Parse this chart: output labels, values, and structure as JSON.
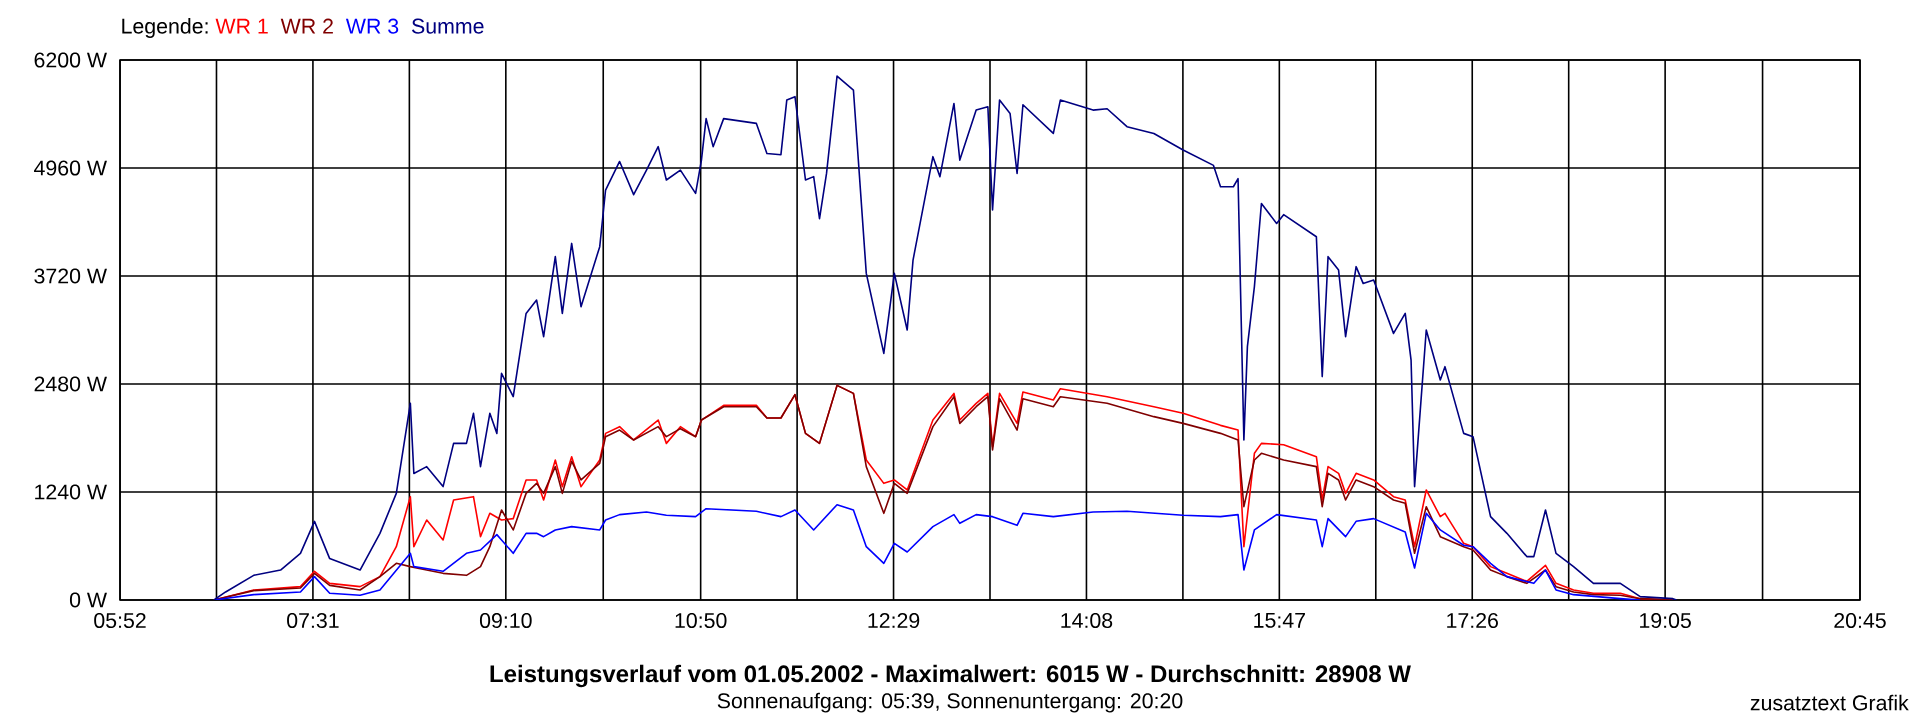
{
  "chart_data": {
    "type": "line",
    "title": "Leistungsverlauf vom 01.05.2002 - Maximalwert: 6015 W - Durchschnitt: 28908 W",
    "subtitle": "Sonnenaufgang: 05:39, Sonnenuntergang: 20:20",
    "annotations": [
      "zusatztext Grafik"
    ],
    "legend_title": "Legende:",
    "legend": "top left",
    "grid": true,
    "xlim": [
      5.8667,
      20.75
    ],
    "ylim": [
      0,
      6200
    ],
    "xticks": [
      {
        "value": 5.8667,
        "label": "05:52"
      },
      {
        "value": 6.6917,
        "label": null
      },
      {
        "value": 7.5167,
        "label": "07:31"
      },
      {
        "value": 8.3417,
        "label": null
      },
      {
        "value": 9.1667,
        "label": "09:10"
      },
      {
        "value": 10.0,
        "label": null
      },
      {
        "value": 10.8333,
        "label": "10:50"
      },
      {
        "value": 11.6583,
        "label": null
      },
      {
        "value": 12.4833,
        "label": "12:29"
      },
      {
        "value": 13.3083,
        "label": null
      },
      {
        "value": 14.1333,
        "label": "14:08"
      },
      {
        "value": 14.9583,
        "label": null
      },
      {
        "value": 15.7833,
        "label": "15:47"
      },
      {
        "value": 16.6083,
        "label": null
      },
      {
        "value": 17.4333,
        "label": "17:26"
      },
      {
        "value": 18.2583,
        "label": null
      },
      {
        "value": 19.0833,
        "label": "19:05"
      },
      {
        "value": 19.9167,
        "label": null
      },
      {
        "value": 20.75,
        "label": "20:45"
      }
    ],
    "yticks": [
      {
        "value": 0,
        "label": "0 W"
      },
      {
        "value": 1240,
        "label": "1240 W"
      },
      {
        "value": 2480,
        "label": "2480 W"
      },
      {
        "value": 3720,
        "label": "3720 W"
      },
      {
        "value": 4960,
        "label": "4960 W"
      },
      {
        "value": 6200,
        "label": "6200 W"
      }
    ],
    "series": [
      {
        "name": "WR 1",
        "color": "#ff0000",
        "x": [
          6.67,
          7.01,
          7.41,
          7.53,
          7.66,
          7.92,
          8.09,
          8.23,
          8.35,
          8.38,
          8.49,
          8.63,
          8.72,
          8.89,
          8.95,
          9.03,
          9.13,
          9.23,
          9.34,
          9.43,
          9.49,
          9.59,
          9.65,
          9.73,
          9.81,
          9.97,
          10.02,
          10.14,
          10.26,
          10.47,
          10.54,
          10.66,
          10.79,
          10.84,
          11.03,
          11.31,
          11.4,
          11.52,
          11.64,
          11.73,
          11.85,
          12.0,
          12.14,
          12.25,
          12.4,
          12.49,
          12.6,
          12.82,
          13.0,
          13.05,
          13.19,
          13.29,
          13.33,
          13.39,
          13.54,
          13.59,
          13.85,
          13.91,
          14.31,
          14.71,
          14.96,
          15.28,
          15.43,
          15.48,
          15.57,
          15.63,
          15.82,
          16.1,
          16.15,
          16.2,
          16.29,
          16.35,
          16.44,
          16.59,
          16.76,
          16.86,
          16.94,
          17.04,
          17.16,
          17.2,
          17.36,
          17.44,
          17.59,
          17.73,
          17.9,
          18.06,
          18.15,
          18.3,
          18.47,
          18.7,
          18.87,
          19.15
        ],
        "values": [
          0,
          115,
          153,
          329,
          191,
          153,
          268,
          612,
          1186,
          612,
          918,
          689,
          1148,
          1186,
          727,
          995,
          918,
          934,
          1378,
          1378,
          1148,
          1607,
          1301,
          1645,
          1301,
          1607,
          1913,
          1990,
          1837,
          2066,
          1798,
          1990,
          1875,
          2066,
          2235,
          2235,
          2089,
          2089,
          2357,
          1913,
          1798,
          2464,
          2372,
          1607,
          1339,
          1378,
          1263,
          2066,
          2372,
          2066,
          2258,
          2372,
          1760,
          2372,
          2028,
          2388,
          2296,
          2426,
          2334,
          2219,
          2143,
          2005,
          1951,
          612,
          1684,
          1798,
          1783,
          1645,
          1148,
          1531,
          1454,
          1224,
          1454,
          1378,
          1186,
          1148,
          612,
          1263,
          957,
          995,
          650,
          612,
          383,
          306,
          214,
          398,
          191,
          115,
          77,
          77,
          15,
          0
        ]
      },
      {
        "name": "WR 2",
        "color": "#800000",
        "x": [
          6.67,
          7.01,
          7.41,
          7.53,
          7.66,
          7.92,
          8.09,
          8.23,
          8.35,
          8.49,
          8.63,
          8.83,
          8.95,
          9.03,
          9.13,
          9.23,
          9.34,
          9.43,
          9.49,
          9.59,
          9.65,
          9.73,
          9.81,
          9.97,
          10.02,
          10.14,
          10.26,
          10.47,
          10.54,
          10.66,
          10.79,
          10.84,
          11.03,
          11.31,
          11.4,
          11.52,
          11.64,
          11.73,
          11.85,
          12.0,
          12.14,
          12.25,
          12.4,
          12.49,
          12.6,
          12.82,
          13.0,
          13.05,
          13.19,
          13.29,
          13.33,
          13.39,
          13.54,
          13.59,
          13.85,
          13.91,
          14.31,
          14.71,
          14.96,
          15.28,
          15.43,
          15.48,
          15.57,
          15.63,
          15.82,
          16.1,
          16.15,
          16.2,
          16.29,
          16.35,
          16.44,
          16.59,
          16.76,
          16.86,
          16.94,
          17.04,
          17.16,
          17.36,
          17.44,
          17.59,
          17.73,
          17.9,
          18.06,
          18.15,
          18.3,
          18.47,
          18.7,
          18.87,
          19.15
        ],
        "values": [
          0,
          107,
          138,
          306,
          168,
          115,
          268,
          421,
          383,
          344,
          306,
          283,
          383,
          612,
          1033,
          804,
          1224,
          1339,
          1224,
          1531,
          1224,
          1592,
          1378,
          1569,
          1875,
          1951,
          1837,
          1990,
          1875,
          1967,
          1875,
          2066,
          2219,
          2219,
          2089,
          2089,
          2357,
          1913,
          1798,
          2464,
          2372,
          1531,
          995,
          1339,
          1224,
          1990,
          2334,
          2028,
          2219,
          2334,
          1722,
          2311,
          1951,
          2311,
          2219,
          2334,
          2258,
          2105,
          2028,
          1913,
          1837,
          1071,
          1607,
          1684,
          1607,
          1531,
          1071,
          1454,
          1378,
          1148,
          1378,
          1301,
          1148,
          1110,
          536,
          1071,
          727,
          612,
          574,
          344,
          268,
          191,
          344,
          153,
          92,
          61,
          54,
          15,
          0
        ]
      },
      {
        "name": "WR 3",
        "color": "#0000ff",
        "x": [
          6.67,
          7.01,
          7.41,
          7.53,
          7.66,
          7.92,
          8.09,
          8.35,
          8.38,
          8.63,
          8.83,
          8.95,
          9.09,
          9.13,
          9.23,
          9.34,
          9.43,
          9.49,
          9.59,
          9.73,
          9.97,
          10.02,
          10.14,
          10.37,
          10.54,
          10.79,
          10.88,
          11.31,
          11.52,
          11.64,
          11.8,
          12.0,
          12.14,
          12.25,
          12.4,
          12.49,
          12.6,
          12.82,
          13.0,
          13.05,
          13.19,
          13.33,
          13.54,
          13.59,
          13.85,
          14.19,
          14.48,
          14.96,
          15.28,
          15.43,
          15.48,
          15.57,
          15.76,
          16.1,
          16.15,
          16.2,
          16.35,
          16.44,
          16.59,
          16.86,
          16.94,
          17.04,
          17.16,
          17.36,
          17.44,
          17.59,
          17.73,
          17.96,
          18.06,
          18.15,
          18.3,
          18.7,
          18.87
        ],
        "values": [
          0,
          61,
          92,
          268,
          77,
          54,
          115,
          536,
          383,
          329,
          536,
          574,
          750,
          689,
          536,
          765,
          765,
          727,
          804,
          842,
          804,
          918,
          980,
          1010,
          972,
          957,
          1048,
          1018,
          957,
          1033,
          804,
          1094,
          1033,
          612,
          421,
          650,
          551,
          842,
          980,
          880,
          980,
          957,
          857,
          995,
          957,
          1010,
          1018,
          972,
          957,
          980,
          344,
          804,
          980,
          918,
          612,
          934,
          727,
          903,
          934,
          781,
          367,
          995,
          804,
          628,
          612,
          421,
          268,
          191,
          344,
          115,
          61,
          15,
          0
        ]
      },
      {
        "name": "Summe",
        "color": "#000080",
        "x": [
          6.67,
          6.77,
          7.01,
          7.24,
          7.41,
          7.53,
          7.66,
          7.92,
          8.09,
          8.23,
          8.35,
          8.38,
          8.49,
          8.63,
          8.72,
          8.83,
          8.89,
          8.95,
          9.03,
          9.09,
          9.13,
          9.23,
          9.34,
          9.43,
          9.49,
          9.59,
          9.65,
          9.73,
          9.81,
          9.97,
          10.02,
          10.14,
          10.26,
          10.37,
          10.47,
          10.54,
          10.66,
          10.79,
          10.84,
          10.88,
          10.94,
          11.03,
          11.31,
          11.4,
          11.52,
          11.57,
          11.64,
          11.73,
          11.8,
          11.85,
          11.91,
          12.0,
          12.14,
          12.25,
          12.4,
          12.49,
          12.6,
          12.65,
          12.82,
          12.88,
          13.0,
          13.05,
          13.19,
          13.29,
          13.33,
          13.39,
          13.48,
          13.54,
          13.59,
          13.85,
          13.91,
          14.19,
          14.31,
          14.48,
          14.71,
          14.96,
          15.22,
          15.28,
          15.39,
          15.43,
          15.48,
          15.51,
          15.57,
          15.63,
          15.76,
          15.82,
          16.1,
          16.15,
          16.2,
          16.29,
          16.35,
          16.44,
          16.5,
          16.59,
          16.76,
          16.86,
          16.91,
          16.94,
          17.04,
          17.16,
          17.2,
          17.36,
          17.44,
          17.59,
          17.73,
          17.9,
          17.96,
          18.06,
          18.15,
          18.3,
          18.47,
          18.7,
          18.87,
          19.15,
          19.18
        ],
        "values": [
          0,
          92,
          283,
          344,
          535,
          902,
          475,
          344,
          765,
          1224,
          2257,
          1453,
          1531,
          1302,
          1798,
          1798,
          2143,
          1531,
          2143,
          1913,
          2602,
          2335,
          3290,
          3444,
          3024,
          3942,
          3290,
          4094,
          3368,
          4057,
          4707,
          5035,
          4654,
          4936,
          5205,
          4822,
          4936,
          4668,
          5051,
          5527,
          5205,
          5527,
          5472,
          5127,
          5113,
          5740,
          5779,
          4822,
          4861,
          4378,
          4898,
          6015,
          5855,
          3750,
          2831,
          3750,
          3100,
          3903,
          5090,
          4861,
          5701,
          5051,
          5625,
          5663,
          4477,
          5740,
          5586,
          4898,
          5686,
          5357,
          5740,
          5625,
          5640,
          5434,
          5357,
          5166,
          4990,
          4745,
          4745,
          4837,
          1837,
          2909,
          3598,
          4553,
          4323,
          4424,
          4171,
          2565,
          3942,
          3788,
          3024,
          3827,
          3635,
          3674,
          3061,
          3290,
          2755,
          1302,
          3100,
          2526,
          2679,
          1913,
          1875,
          957,
          765,
          498,
          498,
          1033,
          535,
          383,
          191,
          191,
          38,
          15,
          0
        ]
      }
    ]
  }
}
